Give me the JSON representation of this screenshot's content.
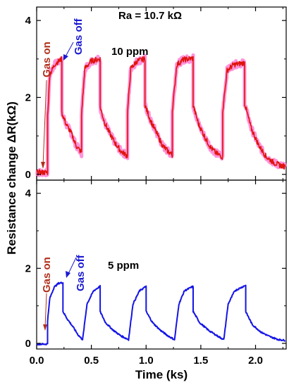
{
  "chart_data": [
    {
      "type": "line",
      "panel": "top",
      "label": "10 ppm",
      "header": "Ra = 10.7 kΩ",
      "color": "#e0140c",
      "highlight_color": "#ff78d2",
      "xlim": [
        0,
        2.28
      ],
      "ylim": [
        -0.15,
        4.35
      ],
      "yticks": [
        0,
        2,
        4
      ],
      "x": [
        0.0,
        0.08,
        0.1,
        0.1,
        0.12,
        0.17,
        0.23,
        0.23,
        0.27,
        0.32,
        0.36,
        0.4,
        0.41,
        0.41,
        0.44,
        0.5,
        0.58,
        0.58,
        0.62,
        0.67,
        0.72,
        0.77,
        0.82,
        0.83,
        0.83,
        0.86,
        0.92,
        0.99,
        0.99,
        1.04,
        1.1,
        1.15,
        1.2,
        1.24,
        1.24,
        1.28,
        1.34,
        1.43,
        1.43,
        1.48,
        1.54,
        1.59,
        1.64,
        1.7,
        1.7,
        1.74,
        1.8,
        1.9,
        1.9,
        1.96,
        2.03,
        2.1,
        2.17,
        2.24,
        2.27
      ],
      "y": [
        0.05,
        0.05,
        0.05,
        1.5,
        2.6,
        2.88,
        3.0,
        1.6,
        1.3,
        1.05,
        0.75,
        0.6,
        0.55,
        1.55,
        2.75,
        2.95,
        3.0,
        1.75,
        1.35,
        1.05,
        0.8,
        0.6,
        0.5,
        0.45,
        1.6,
        2.75,
        2.95,
        3.0,
        1.8,
        1.4,
        1.05,
        0.75,
        0.6,
        0.5,
        1.65,
        2.85,
        2.98,
        3.02,
        1.8,
        1.3,
        0.95,
        0.7,
        0.55,
        0.45,
        1.65,
        2.7,
        2.85,
        2.9,
        1.85,
        1.2,
        0.75,
        0.45,
        0.3,
        0.22,
        0.2
      ],
      "annotations": [
        {
          "text": "Gas on",
          "color": "#b0301c"
        },
        {
          "text": "Gas off",
          "color": "#1a1ad0"
        }
      ]
    },
    {
      "type": "line",
      "panel": "bottom",
      "label": "5 ppm",
      "color": "#1414e6",
      "xlim": [
        0,
        2.28
      ],
      "xticks": [
        0.0,
        0.5,
        1.0,
        1.5,
        2.0
      ],
      "xticklabels": [
        "0.0",
        "0.5",
        "1.0",
        "1.5",
        "2.0"
      ],
      "xlabel": "Time (ks)",
      "ylim": [
        -0.15,
        4.35
      ],
      "yticks": [
        0,
        2,
        4
      ],
      "x": [
        0.0,
        0.09,
        0.1,
        0.1,
        0.12,
        0.16,
        0.2,
        0.24,
        0.24,
        0.28,
        0.33,
        0.38,
        0.42,
        0.42,
        0.46,
        0.52,
        0.58,
        0.58,
        0.63,
        0.7,
        0.77,
        0.84,
        0.84,
        0.88,
        0.94,
        1.0,
        1.0,
        1.06,
        1.13,
        1.2,
        1.26,
        1.26,
        1.3,
        1.35,
        1.43,
        1.43,
        1.49,
        1.57,
        1.65,
        1.71,
        1.71,
        1.75,
        1.81,
        1.91,
        1.91,
        1.97,
        2.05,
        2.13,
        2.21,
        2.27
      ],
      "y": [
        -0.02,
        -0.02,
        0.0,
        0.6,
        1.2,
        1.5,
        1.6,
        1.62,
        0.85,
        0.65,
        0.45,
        0.22,
        0.1,
        0.1,
        1.05,
        1.4,
        1.52,
        0.85,
        0.55,
        0.35,
        0.2,
        0.1,
        0.1,
        1.05,
        1.4,
        1.52,
        0.85,
        0.55,
        0.35,
        0.2,
        0.1,
        0.1,
        1.05,
        1.4,
        1.52,
        0.85,
        0.55,
        0.35,
        0.2,
        0.1,
        0.1,
        1.05,
        1.4,
        1.55,
        0.85,
        0.5,
        0.3,
        0.18,
        0.1,
        0.08
      ],
      "annotations": [
        {
          "text": "Gas on",
          "color": "#b0301c"
        },
        {
          "text": "Gas off",
          "color": "#1a1ad0"
        }
      ]
    }
  ],
  "shared": {
    "ylabel": "Resistance change  ΔR(kΩ)"
  }
}
